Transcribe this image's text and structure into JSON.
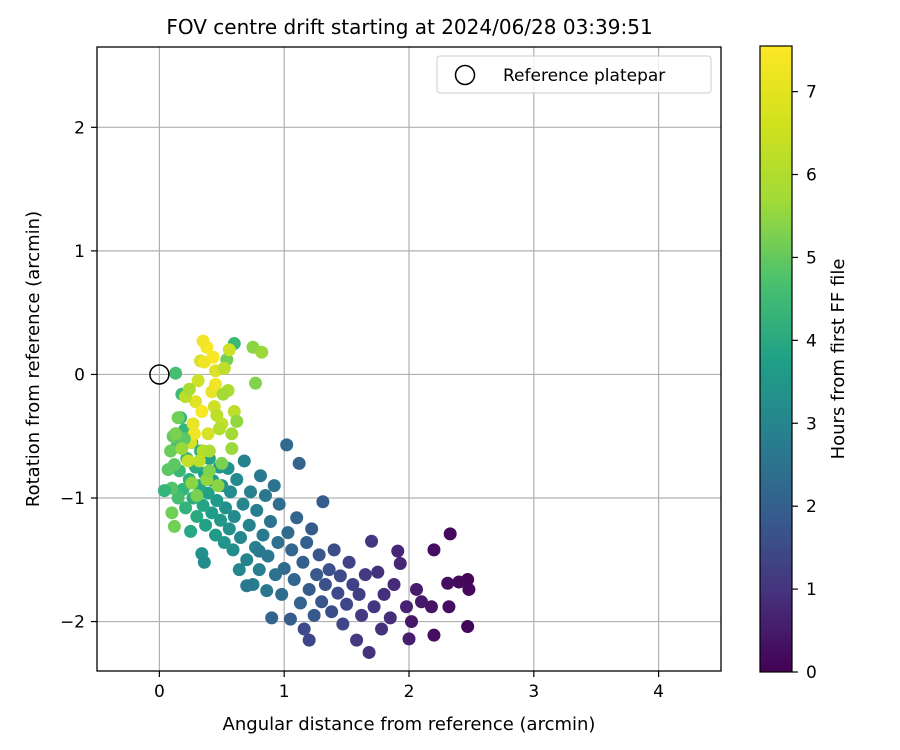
{
  "chart_data": {
    "type": "scatter",
    "title": "FOV centre drift starting at 2024/06/28 03:39:51",
    "xlabel": "Angular distance from reference (arcmin)",
    "ylabel": "Rotation from reference (arcmin)",
    "xlim": [
      -0.5,
      4.5
    ],
    "ylim": [
      -2.4,
      2.65
    ],
    "xticks": [
      0,
      1,
      2,
      3,
      4
    ],
    "yticks": [
      -2,
      -1,
      0,
      1,
      2
    ],
    "grid": true,
    "legend": {
      "entries": [
        "Reference platepar"
      ],
      "placement": "top-right"
    },
    "colorbar": {
      "label": "Hours from first FF file",
      "range": [
        0,
        7.55
      ],
      "ticks": [
        0,
        1,
        2,
        3,
        4,
        5,
        6,
        7
      ],
      "colormap": "viridis"
    },
    "reference_point": {
      "x": 0,
      "y": 0
    },
    "points": [
      [
        2.47,
        -1.66,
        0.1
      ],
      [
        2.48,
        -1.74,
        0.15
      ],
      [
        2.47,
        -2.04,
        0.1
      ],
      [
        2.4,
        -1.68,
        0.2
      ],
      [
        2.32,
        -1.88,
        0.25
      ],
      [
        2.31,
        -1.69,
        0.3
      ],
      [
        2.18,
        -1.88,
        0.4
      ],
      [
        2.2,
        -2.11,
        0.3
      ],
      [
        2.33,
        -1.29,
        0.2
      ],
      [
        2.2,
        -1.42,
        0.3
      ],
      [
        2.1,
        -1.84,
        0.5
      ],
      [
        2.06,
        -1.74,
        0.6
      ],
      [
        2.02,
        -2.0,
        0.5
      ],
      [
        2.0,
        -2.14,
        0.6
      ],
      [
        1.98,
        -1.88,
        0.7
      ],
      [
        1.93,
        -1.53,
        0.8
      ],
      [
        1.91,
        -1.43,
        0.8
      ],
      [
        1.88,
        -1.7,
        0.9
      ],
      [
        1.85,
        -1.97,
        1.0
      ],
      [
        1.8,
        -1.78,
        1.0
      ],
      [
        1.78,
        -2.06,
        1.1
      ],
      [
        1.75,
        -1.6,
        1.1
      ],
      [
        1.72,
        -1.88,
        1.2
      ],
      [
        1.7,
        -1.35,
        1.2
      ],
      [
        1.68,
        -2.25,
        1.1
      ],
      [
        1.65,
        -1.62,
        1.3
      ],
      [
        1.62,
        -1.95,
        1.3
      ],
      [
        1.6,
        -1.78,
        1.4
      ],
      [
        1.58,
        -2.15,
        1.3
      ],
      [
        1.55,
        -1.7,
        1.5
      ],
      [
        1.52,
        -1.52,
        1.5
      ],
      [
        1.5,
        -1.86,
        1.6
      ],
      [
        1.47,
        -2.02,
        1.6
      ],
      [
        1.45,
        -1.63,
        1.7
      ],
      [
        1.43,
        -1.77,
        1.7
      ],
      [
        1.4,
        -1.42,
        1.8
      ],
      [
        1.38,
        -1.92,
        1.8
      ],
      [
        1.36,
        -1.58,
        1.9
      ],
      [
        1.33,
        -1.7,
        1.9
      ],
      [
        1.31,
        -1.03,
        2.2
      ],
      [
        1.3,
        -1.84,
        2.0
      ],
      [
        1.28,
        -1.46,
        2.0
      ],
      [
        1.26,
        -1.62,
        2.1
      ],
      [
        1.24,
        -1.95,
        2.1
      ],
      [
        1.22,
        -1.25,
        2.2
      ],
      [
        1.2,
        -2.15,
        1.6
      ],
      [
        1.2,
        -1.74,
        2.2
      ],
      [
        1.18,
        -1.36,
        2.3
      ],
      [
        1.16,
        -2.06,
        1.7
      ],
      [
        1.15,
        -1.52,
        2.3
      ],
      [
        1.13,
        -1.85,
        2.4
      ],
      [
        1.12,
        -0.72,
        2.4
      ],
      [
        1.1,
        -1.16,
        2.4
      ],
      [
        1.08,
        -1.66,
        2.5
      ],
      [
        1.06,
        -1.42,
        2.5
      ],
      [
        1.05,
        -1.98,
        2.2
      ],
      [
        1.03,
        -1.28,
        2.6
      ],
      [
        1.02,
        -0.57,
        2.6
      ],
      [
        1.0,
        -1.57,
        2.6
      ],
      [
        0.98,
        -1.78,
        2.7
      ],
      [
        0.96,
        -1.05,
        2.7
      ],
      [
        0.95,
        -1.36,
        2.8
      ],
      [
        0.93,
        -1.62,
        2.8
      ],
      [
        0.92,
        -0.9,
        2.9
      ],
      [
        0.9,
        -1.97,
        2.4
      ],
      [
        0.89,
        -1.19,
        2.9
      ],
      [
        0.87,
        -1.47,
        3.0
      ],
      [
        0.86,
        -1.75,
        3.0
      ],
      [
        0.85,
        -0.98,
        3.0
      ],
      [
        0.83,
        -1.3,
        3.1
      ],
      [
        0.81,
        -0.82,
        3.1
      ],
      [
        0.8,
        -1.58,
        3.2
      ],
      [
        0.78,
        -1.1,
        3.2
      ],
      [
        0.77,
        -1.4,
        3.3
      ],
      [
        0.75,
        -1.7,
        3.2
      ],
      [
        0.73,
        -0.95,
        3.3
      ],
      [
        0.72,
        -1.22,
        3.4
      ],
      [
        0.7,
        -1.5,
        3.4
      ],
      [
        0.68,
        -0.7,
        3.4
      ],
      [
        0.67,
        -1.05,
        3.5
      ],
      [
        0.65,
        -1.32,
        3.5
      ],
      [
        0.64,
        -1.58,
        3.5
      ],
      [
        0.62,
        -0.85,
        3.6
      ],
      [
        0.6,
        -1.15,
        3.6
      ],
      [
        0.59,
        -1.42,
        3.7
      ],
      [
        0.57,
        -0.95,
        3.7
      ],
      [
        0.56,
        -1.25,
        3.8
      ],
      [
        0.55,
        -0.76,
        3.8
      ],
      [
        0.53,
        -1.08,
        3.8
      ],
      [
        0.52,
        -1.36,
        3.9
      ],
      [
        0.5,
        -0.9,
        3.9
      ],
      [
        0.49,
        -1.18,
        4.0
      ],
      [
        0.48,
        -0.75,
        4.0
      ],
      [
        0.46,
        -1.02,
        4.1
      ],
      [
        0.45,
        -1.3,
        4.1
      ],
      [
        0.43,
        -0.86,
        4.2
      ],
      [
        0.42,
        -1.12,
        4.2
      ],
      [
        0.4,
        -0.68,
        4.3
      ],
      [
        0.39,
        -0.96,
        4.3
      ],
      [
        0.37,
        -1.22,
        4.3
      ],
      [
        0.36,
        -0.8,
        4.4
      ],
      [
        0.35,
        -1.06,
        4.4
      ],
      [
        0.34,
        -1.45,
        3.8
      ],
      [
        0.33,
        -0.62,
        4.5
      ],
      [
        0.32,
        -0.9,
        4.5
      ],
      [
        0.3,
        -1.15,
        4.6
      ],
      [
        0.29,
        -0.75,
        4.6
      ],
      [
        0.27,
        -1.0,
        4.7
      ],
      [
        0.26,
        -0.55,
        4.8
      ],
      [
        0.25,
        -1.27,
        4.5
      ],
      [
        0.24,
        -0.85,
        4.8
      ],
      [
        0.22,
        -0.68,
        4.9
      ],
      [
        0.21,
        -1.08,
        4.9
      ],
      [
        0.2,
        -0.45,
        5.0
      ],
      [
        0.19,
        -0.93,
        5.0
      ],
      [
        0.18,
        -0.16,
        5.2
      ],
      [
        0.17,
        -0.35,
        5.0
      ],
      [
        0.16,
        -0.78,
        5.1
      ],
      [
        0.15,
        -1.0,
        5.3
      ],
      [
        0.14,
        -0.58,
        5.4
      ],
      [
        0.13,
        0.01,
        5.3
      ],
      [
        0.12,
        -0.73,
        5.6
      ],
      [
        0.12,
        -1.23,
        5.9
      ],
      [
        0.11,
        -0.5,
        5.7
      ],
      [
        0.1,
        -0.92,
        5.5
      ],
      [
        0.09,
        -0.62,
        5.8
      ],
      [
        0.07,
        -0.77,
        5.6
      ],
      [
        0.04,
        -0.94,
        5.0
      ],
      [
        0.1,
        -1.12,
        5.9
      ],
      [
        0.36,
        -1.52,
        3.7
      ],
      [
        0.7,
        -1.71,
        3.0
      ],
      [
        0.8,
        -1.43,
        3.1
      ],
      [
        0.6,
        0.25,
        5.1
      ],
      [
        0.54,
        0.12,
        5.9
      ],
      [
        0.75,
        0.22,
        6.2
      ],
      [
        0.82,
        0.18,
        6.4
      ],
      [
        0.77,
        -0.07,
        6.1
      ],
      [
        0.55,
        -0.13,
        6.6
      ],
      [
        0.6,
        -0.3,
        6.8
      ],
      [
        0.5,
        -0.4,
        6.9
      ],
      [
        0.35,
        -0.62,
        6.7
      ],
      [
        0.38,
        -0.85,
        6.3
      ],
      [
        0.58,
        -0.48,
        6.5
      ],
      [
        0.45,
        0.03,
        7.2
      ],
      [
        0.42,
        -0.14,
        7.3
      ],
      [
        0.38,
        0.22,
        7.5
      ],
      [
        0.35,
        0.27,
        7.4
      ],
      [
        0.33,
        0.11,
        7.1
      ],
      [
        0.31,
        -0.05,
        7.0
      ],
      [
        0.29,
        -0.22,
        7.2
      ],
      [
        0.27,
        -0.4,
        7.3
      ],
      [
        0.25,
        -0.55,
        7.1
      ],
      [
        0.23,
        -0.7,
        6.9
      ],
      [
        0.21,
        -0.18,
        6.8
      ],
      [
        0.44,
        -0.26,
        7.0
      ],
      [
        0.48,
        -0.44,
        6.7
      ],
      [
        0.4,
        -0.62,
        6.6
      ],
      [
        0.47,
        -0.9,
        6.2
      ],
      [
        0.5,
        -0.72,
        6.0
      ],
      [
        0.58,
        -0.6,
        6.4
      ],
      [
        0.3,
        -0.98,
        6.0
      ],
      [
        0.36,
        0.1,
        7.4
      ],
      [
        0.34,
        -0.3,
        7.5
      ],
      [
        0.28,
        -0.48,
        7.4
      ],
      [
        0.56,
        0.2,
        7.0
      ],
      [
        0.52,
        0.05,
        6.8
      ],
      [
        0.62,
        -0.38,
        6.3
      ],
      [
        0.2,
        -0.52,
        5.6
      ],
      [
        0.18,
        -0.6,
        6.4
      ],
      [
        0.13,
        -0.48,
        6.0
      ],
      [
        0.45,
        -0.08,
        7.4
      ],
      [
        0.39,
        -0.48,
        7.1
      ],
      [
        0.43,
        0.14,
        7.5
      ],
      [
        0.46,
        -0.33,
        6.8
      ],
      [
        0.51,
        -0.16,
        6.5
      ],
      [
        0.32,
        -0.7,
        6.8
      ],
      [
        0.26,
        -0.88,
        6.2
      ],
      [
        0.15,
        -0.35,
        5.9
      ],
      [
        0.24,
        -0.12,
        6.6
      ],
      [
        0.4,
        -0.78,
        6.1
      ]
    ]
  }
}
